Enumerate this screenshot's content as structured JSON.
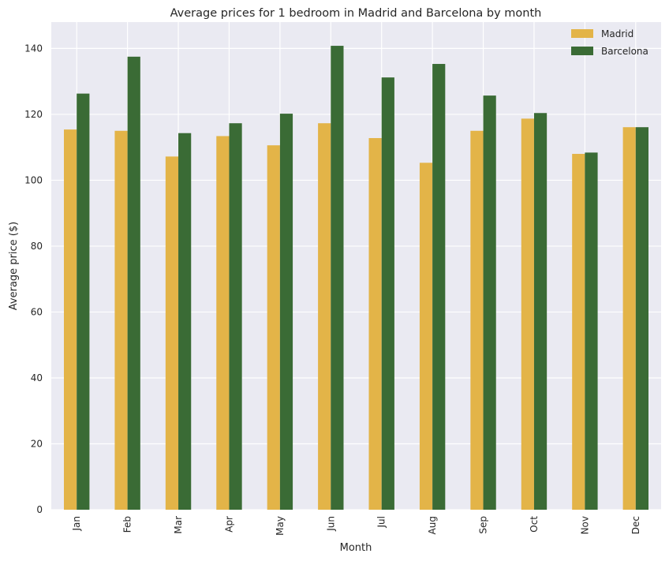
{
  "chart_data": {
    "type": "bar",
    "title": "Average prices for 1 bedroom in Madrid and Barcelona by month",
    "xlabel": "Month",
    "ylabel": "Average price ($)",
    "categories": [
      "Jan",
      "Feb",
      "Mar",
      "Apr",
      "May",
      "Jun",
      "Jul",
      "Aug",
      "Sep",
      "Oct",
      "Nov",
      "Dec"
    ],
    "series": [
      {
        "name": "Madrid",
        "color": "#e3b448",
        "values": [
          115.4,
          115.0,
          107.2,
          113.4,
          110.6,
          117.3,
          112.8,
          105.3,
          115.0,
          118.7,
          108.0,
          116.1
        ]
      },
      {
        "name": "Barcelona",
        "color": "#3a6b35",
        "values": [
          126.3,
          137.5,
          114.3,
          117.3,
          120.2,
          140.8,
          131.2,
          135.3,
          125.7,
          120.4,
          108.4,
          116.1
        ]
      }
    ],
    "ylim": [
      0,
      148
    ],
    "yticks": [
      0,
      20,
      40,
      60,
      80,
      100,
      120,
      140
    ],
    "grid": true,
    "legend_position": "top-right",
    "background": "#eaeaf2"
  }
}
